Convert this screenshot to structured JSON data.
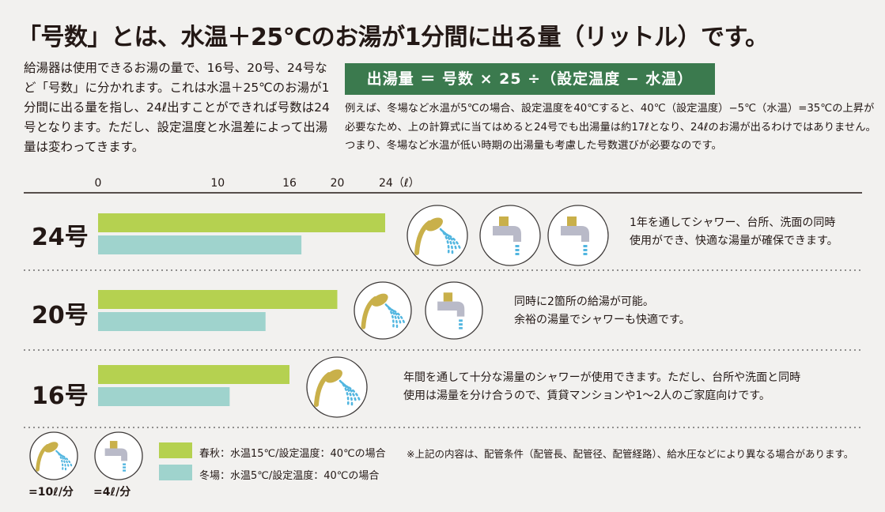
{
  "title": "「号数」とは、水温＋25℃のお湯が1分間に出る量（リットル）です。",
  "intro": "給湯器は使用できるお湯の量で、16号、20号、24号など「号数」に分かれます。これは水温＋25℃のお湯が1分間に出る量を指し、24ℓ出すことができれば号数は24号となります。ただし、設定温度と水温差によって出湯量は変わってきます。",
  "formula": "出湯量 ＝ 号数 × 25 ÷（設定温度 − 水温）",
  "example": "例えば、冬場など水温が5℃の場合、設定温度を40℃すると、40℃（設定温度）−5℃（水温）=35℃の上昇が必要なため、上の計算式に当てはめると24号でも出湯量は約17ℓとなり、24ℓのお湯が出るわけではありません。つまり、冬場など水温が低い時期の出湯量も考慮した号数選びが必要なのです。",
  "chart_data": {
    "type": "bar",
    "orientation": "horizontal",
    "categories": [
      "24号",
      "20号",
      "16号"
    ],
    "series": [
      {
        "name": "春秋：水温15℃/設定温度：40℃の場合",
        "values": [
          24,
          20,
          16
        ]
      },
      {
        "name": "冬場：水温5℃/設定温度：40℃の場合",
        "values": [
          17,
          14,
          11
        ]
      }
    ],
    "ticks": [
      0,
      10,
      16,
      20,
      24
    ],
    "tick_labels": [
      "0",
      "10",
      "16",
      "20",
      "24（ℓ）"
    ],
    "xlim": [
      0,
      24
    ],
    "xlabel": "",
    "ylabel": ""
  },
  "rows": [
    {
      "label": "24号",
      "description": [
        "1年を通してシャワー、台所、洗面の同時",
        "使用ができ、快適な湯量が確保できます。"
      ],
      "icons": [
        "shower-icon",
        "faucet-icon",
        "faucet-icon"
      ]
    },
    {
      "label": "20号",
      "description": [
        "同時に2箇所の給湯が可能。",
        "余裕の湯量でシャワーも快適です。"
      ],
      "icons": [
        "shower-icon",
        "faucet-icon"
      ]
    },
    {
      "label": "16号",
      "description": [
        "年間を通して十分な湯量のシャワーが使用できます。ただし、台所や洗面と同時",
        "使用は湯量を分け合うので、賃貸マンションや1〜2人のご家庭向けです。"
      ],
      "icons": [
        "shower-icon"
      ]
    }
  ],
  "legend": {
    "spring": "春秋：水温15℃/設定温度：40℃の場合",
    "winter": "冬場：水温5℃/設定温度：40℃の場合",
    "shower_unit": "=10ℓ/分",
    "faucet_unit": "=4ℓ/分"
  },
  "note": "※上記の内容は、配管条件（配管長、配管径、配管経路）、給水圧などにより異なる場合があります。",
  "colors": {
    "spring": "#b5d150",
    "winter": "#9fd3cd",
    "formula_bg": "#3b7a4e",
    "gold": "#c9b04a",
    "water": "#52b6e0",
    "faucet": "#b9bac8"
  }
}
